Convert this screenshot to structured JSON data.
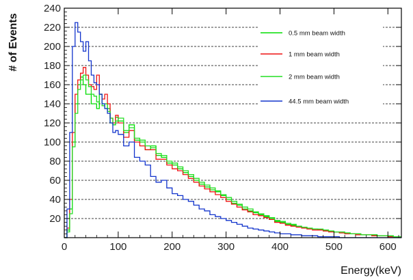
{
  "chart_data": {
    "type": "line",
    "title": "",
    "xlabel": "Energy(keV)",
    "ylabel": "# of Events",
    "xlim": [
      0,
      625
    ],
    "ylim": [
      0,
      240
    ],
    "bin_width_kev": 5,
    "x_ticks": [
      0,
      100,
      200,
      300,
      400,
      500,
      600
    ],
    "y_ticks": [
      20,
      40,
      60,
      80,
      100,
      120,
      140,
      160,
      180,
      200,
      220,
      240
    ],
    "grid": "horizontal dashed",
    "legend_position": "top-right",
    "series": [
      {
        "name": "0.5 mm beam width",
        "color": "#00dd00",
        "x_bins": [
          0,
          5,
          10,
          15,
          20,
          25,
          30,
          35,
          40,
          45,
          50,
          55,
          60,
          65,
          70,
          75,
          80,
          85,
          90,
          95,
          100,
          110,
          120,
          130,
          140,
          150,
          160,
          170,
          180,
          190,
          200,
          210,
          220,
          230,
          240,
          250,
          260,
          270,
          280,
          290,
          300,
          310,
          320,
          330,
          340,
          350,
          360,
          370,
          380,
          390,
          400,
          410,
          420,
          430,
          440,
          450,
          460,
          470,
          480,
          490,
          500,
          510,
          520,
          530,
          540,
          550,
          560,
          570,
          580,
          590,
          600,
          610,
          620
        ],
        "values": [
          0,
          8,
          30,
          100,
          140,
          160,
          168,
          160,
          150,
          150,
          140,
          140,
          135,
          150,
          140,
          140,
          135,
          120,
          118,
          126,
          122,
          110,
          118,
          102,
          100,
          92,
          96,
          86,
          84,
          78,
          76,
          72,
          68,
          64,
          60,
          56,
          53,
          50,
          48,
          44,
          40,
          36,
          34,
          30,
          28,
          26,
          24,
          22,
          20,
          17,
          16,
          14,
          13,
          12,
          11,
          9,
          9,
          8,
          7,
          7,
          6,
          5,
          5,
          4,
          4,
          3,
          3,
          3,
          2,
          2,
          2,
          1,
          1
        ]
      },
      {
        "name": "1 mm beam width",
        "color": "#ee1111",
        "x_bins": [
          0,
          5,
          10,
          15,
          20,
          25,
          30,
          35,
          40,
          45,
          50,
          55,
          60,
          65,
          70,
          75,
          80,
          85,
          90,
          95,
          100,
          110,
          120,
          130,
          140,
          150,
          160,
          170,
          180,
          190,
          200,
          210,
          220,
          230,
          240,
          250,
          260,
          270,
          280,
          290,
          300,
          310,
          320,
          330,
          340,
          350,
          360,
          370,
          380,
          390,
          400,
          410,
          420,
          430,
          440,
          450,
          460,
          470,
          480,
          490,
          500,
          510,
          520,
          530,
          540,
          550,
          560,
          570,
          580,
          590,
          600,
          610,
          620
        ],
        "values": [
          0,
          10,
          40,
          110,
          150,
          165,
          172,
          178,
          170,
          160,
          158,
          155,
          170,
          150,
          145,
          150,
          140,
          125,
          120,
          128,
          120,
          105,
          112,
          100,
          96,
          92,
          92,
          82,
          82,
          76,
          72,
          70,
          66,
          62,
          58,
          54,
          51,
          48,
          45,
          42,
          38,
          35,
          32,
          29,
          27,
          24,
          23,
          21,
          19,
          16,
          15,
          13,
          12,
          11,
          10,
          9,
          8,
          8,
          7,
          6,
          6,
          5,
          4,
          4,
          3,
          3,
          3,
          2,
          2,
          2,
          1,
          1,
          1
        ]
      },
      {
        "name": "2 mm beam width",
        "color": "#22dd22",
        "x_bins": [
          0,
          5,
          10,
          15,
          20,
          25,
          30,
          35,
          40,
          45,
          50,
          55,
          60,
          65,
          70,
          75,
          80,
          85,
          90,
          95,
          100,
          110,
          120,
          130,
          140,
          150,
          160,
          170,
          180,
          190,
          200,
          210,
          220,
          230,
          240,
          250,
          260,
          270,
          280,
          290,
          300,
          310,
          320,
          330,
          340,
          350,
          360,
          370,
          380,
          390,
          400,
          410,
          420,
          430,
          440,
          450,
          460,
          470,
          480,
          490,
          500,
          510,
          520,
          530,
          540,
          550,
          560,
          570,
          580,
          590,
          600,
          610,
          620
        ],
        "values": [
          0,
          6,
          25,
          95,
          130,
          155,
          165,
          170,
          165,
          158,
          150,
          148,
          142,
          150,
          138,
          135,
          132,
          125,
          118,
          122,
          125,
          112,
          115,
          104,
          102,
          96,
          94,
          88,
          86,
          80,
          78,
          74,
          70,
          66,
          62,
          58,
          55,
          52,
          49,
          45,
          42,
          38,
          35,
          32,
          30,
          27,
          25,
          23,
          21,
          18,
          17,
          15,
          14,
          12,
          11,
          10,
          9,
          9,
          8,
          7,
          6,
          6,
          5,
          4,
          4,
          3,
          3,
          3,
          2,
          2,
          2,
          1,
          1
        ]
      },
      {
        "name": "44.5 mm beam width",
        "color": "#1133cc",
        "x_bins": [
          0,
          5,
          10,
          15,
          20,
          25,
          30,
          35,
          40,
          45,
          50,
          55,
          60,
          65,
          70,
          75,
          80,
          85,
          90,
          95,
          100,
          110,
          120,
          130,
          140,
          150,
          160,
          170,
          180,
          190,
          200,
          210,
          220,
          230,
          240,
          250,
          260,
          270,
          280,
          290,
          300,
          310,
          320,
          330,
          340,
          350,
          360,
          370,
          380,
          390,
          400,
          410,
          420,
          430,
          440,
          450,
          460,
          470,
          480,
          490,
          500,
          510,
          520,
          530,
          540,
          550,
          560,
          570,
          580,
          590,
          600,
          610,
          620
        ],
        "values": [
          0,
          30,
          110,
          200,
          225,
          215,
          205,
          195,
          205,
          185,
          170,
          162,
          160,
          150,
          140,
          135,
          130,
          120,
          110,
          112,
          108,
          96,
          100,
          84,
          80,
          76,
          64,
          58,
          60,
          52,
          46,
          44,
          40,
          38,
          34,
          30,
          28,
          24,
          22,
          20,
          18,
          16,
          14,
          12,
          10,
          9,
          8,
          7,
          6,
          5,
          4,
          4,
          3,
          3,
          2,
          2,
          2,
          1,
          1,
          1,
          1,
          0,
          0,
          0,
          0,
          0,
          0,
          0,
          0,
          0,
          0,
          0,
          0
        ]
      }
    ]
  }
}
